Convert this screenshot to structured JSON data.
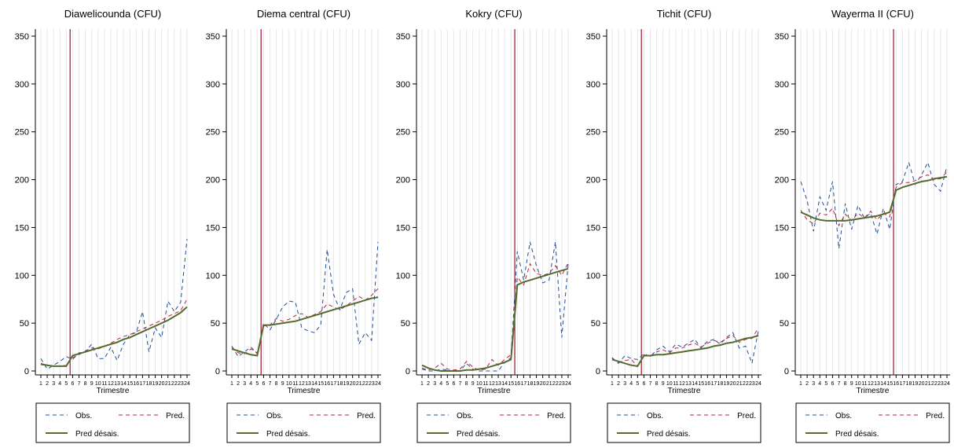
{
  "colors": {
    "obs": "#1f4e9c",
    "pred": "#b5243c",
    "pred_desais": "#556b2f",
    "intervention": "#a0102a",
    "grid": "#e6e6e6"
  },
  "legend": {
    "obs": "Obs.",
    "pred": "Pred.",
    "pred_desais": "Pred désais."
  },
  "chart_data": [
    {
      "type": "line",
      "title": "Diawelicounda (CFU)",
      "xlabel": "Trimestre",
      "ylabel": "",
      "ylim": [
        0,
        350
      ],
      "yticks": [
        0,
        50,
        100,
        150,
        200,
        250,
        300,
        350
      ],
      "x": [
        1,
        2,
        3,
        4,
        5,
        6,
        7,
        8,
        9,
        10,
        11,
        12,
        13,
        14,
        15,
        16,
        17,
        18,
        19,
        20,
        21,
        22,
        23,
        24
      ],
      "intervention_x": 5.6,
      "grid": true,
      "legend_position": "bottom",
      "series": [
        {
          "name": "Obs.",
          "values": [
            13,
            2,
            6,
            10,
            15,
            12,
            19,
            20,
            28,
            13,
            13,
            25,
            11,
            28,
            38,
            40,
            62,
            20,
            45,
            35,
            73,
            62,
            72,
            138
          ]
        },
        {
          "name": "Pred.",
          "values": [
            8,
            6,
            5,
            5,
            6,
            14,
            17,
            21,
            24,
            23,
            26,
            29,
            33,
            36,
            38,
            41,
            44,
            47,
            50,
            53,
            57,
            60,
            63,
            75
          ]
        },
        {
          "name": "Pred désais.",
          "values": [
            7,
            6,
            5,
            5,
            5,
            16,
            18,
            20,
            22,
            24,
            26,
            28,
            30,
            33,
            35,
            38,
            41,
            44,
            47,
            50,
            53,
            57,
            61,
            67
          ]
        }
      ]
    },
    {
      "type": "line",
      "title": "Diema central (CFU)",
      "xlabel": "Trimestre",
      "ylabel": "",
      "ylim": [
        0,
        350
      ],
      "yticks": [
        0,
        50,
        100,
        150,
        200,
        250,
        300,
        350
      ],
      "x": [
        1,
        2,
        3,
        4,
        5,
        6,
        7,
        8,
        9,
        10,
        11,
        12,
        13,
        14,
        15,
        16,
        17,
        18,
        19,
        20,
        21,
        22,
        23,
        24
      ],
      "intervention_x": 5.6,
      "grid": true,
      "legend_position": "bottom",
      "series": [
        {
          "name": "Obs.",
          "values": [
            26,
            15,
            20,
            25,
            18,
            50,
            43,
            54,
            67,
            73,
            72,
            45,
            42,
            40,
            48,
            127,
            80,
            64,
            82,
            86,
            28,
            40,
            32,
            135
          ]
        },
        {
          "name": "Pred.",
          "values": [
            25,
            19,
            18,
            23,
            19,
            47,
            48,
            55,
            52,
            54,
            58,
            60,
            56,
            59,
            62,
            70,
            67,
            64,
            68,
            73,
            78,
            74,
            79,
            86
          ]
        },
        {
          "name": "Pred désais.",
          "values": [
            23,
            21,
            19,
            17,
            16,
            48,
            48,
            49,
            50,
            51,
            52,
            54,
            56,
            58,
            60,
            62,
            64,
            66,
            68,
            70,
            72,
            74,
            76,
            77
          ]
        }
      ]
    },
    {
      "type": "line",
      "title": "Kokry (CFU)",
      "xlabel": "Trimestre",
      "ylabel": "",
      "ylim": [
        0,
        350
      ],
      "yticks": [
        0,
        50,
        100,
        150,
        200,
        250,
        300,
        350
      ],
      "x": [
        1,
        2,
        3,
        4,
        5,
        6,
        7,
        8,
        9,
        10,
        11,
        12,
        13,
        14,
        15,
        16,
        17,
        18,
        19,
        20,
        21,
        22,
        23,
        24
      ],
      "intervention_x": 15.6,
      "grid": true,
      "legend_position": "bottom",
      "series": [
        {
          "name": "Obs.",
          "values": [
            2,
            0,
            0,
            2,
            1,
            0,
            0,
            8,
            2,
            0,
            0,
            0,
            0,
            9,
            14,
            125,
            95,
            135,
            110,
            92,
            95,
            135,
            35,
            112
          ]
        },
        {
          "name": "Pred.",
          "values": [
            3,
            1,
            3,
            8,
            2,
            1,
            2,
            10,
            4,
            1,
            2,
            12,
            6,
            12,
            17,
            98,
            90,
            112,
            102,
            100,
            102,
            110,
            100,
            113
          ]
        },
        {
          "name": "Pred désais.",
          "values": [
            6,
            3,
            1,
            0,
            0,
            0,
            0,
            1,
            1,
            2,
            3,
            5,
            7,
            9,
            12,
            90,
            93,
            95,
            97,
            99,
            101,
            103,
            105,
            107
          ]
        }
      ]
    },
    {
      "type": "line",
      "title": "Tichit (CFU)",
      "xlabel": "Trimestre",
      "ylabel": "",
      "ylim": [
        0,
        350
      ],
      "yticks": [
        0,
        50,
        100,
        150,
        200,
        250,
        300,
        350
      ],
      "x": [
        1,
        2,
        3,
        4,
        5,
        6,
        7,
        8,
        9,
        10,
        11,
        12,
        13,
        14,
        15,
        16,
        17,
        18,
        19,
        20,
        21,
        22,
        23,
        24
      ],
      "intervention_x": 5.6,
      "grid": true,
      "legend_position": "bottom",
      "series": [
        {
          "name": "Obs.",
          "values": [
            14,
            8,
            16,
            13,
            12,
            18,
            15,
            22,
            26,
            20,
            28,
            25,
            29,
            33,
            24,
            31,
            33,
            28,
            35,
            40,
            24,
            26,
            8,
            42
          ]
        },
        {
          "name": "Pred.",
          "values": [
            13,
            9,
            11,
            12,
            5,
            17,
            15,
            20,
            22,
            19,
            24,
            24,
            27,
            29,
            25,
            29,
            32,
            30,
            34,
            37,
            30,
            33,
            34,
            45
          ]
        },
        {
          "name": "Pred désais.",
          "values": [
            12,
            10,
            8,
            6,
            5,
            16,
            16,
            17,
            17,
            18,
            19,
            20,
            21,
            22,
            23,
            24,
            26,
            27,
            29,
            30,
            32,
            34,
            35,
            37
          ]
        }
      ]
    },
    {
      "type": "line",
      "title": "Wayerma II (CFU)",
      "xlabel": "Trimestre",
      "ylabel": "",
      "ylim": [
        0,
        350
      ],
      "yticks": [
        0,
        50,
        100,
        150,
        200,
        250,
        300,
        350
      ],
      "x": [
        1,
        2,
        3,
        4,
        5,
        6,
        7,
        8,
        9,
        10,
        11,
        12,
        13,
        14,
        15,
        16,
        17,
        18,
        19,
        20,
        21,
        22,
        23,
        24
      ],
      "intervention_x": 15.6,
      "grid": true,
      "legend_position": "bottom",
      "series": [
        {
          "name": "Obs.",
          "values": [
            198,
            178,
            146,
            182,
            168,
            198,
            128,
            175,
            148,
            173,
            160,
            165,
            143,
            170,
            148,
            195,
            198,
            218,
            195,
            205,
            218,
            195,
            188,
            214
          ]
        },
        {
          "name": "Pred.",
          "values": [
            168,
            158,
            154,
            165,
            163,
            170,
            152,
            164,
            157,
            165,
            160,
            167,
            158,
            165,
            161,
            192,
            197,
            197,
            199,
            203,
            205,
            200,
            201,
            208
          ]
        },
        {
          "name": "Pred désais.",
          "values": [
            166,
            163,
            160,
            158,
            157,
            157,
            157,
            157,
            158,
            159,
            160,
            161,
            162,
            164,
            166,
            189,
            192,
            194,
            196,
            198,
            199,
            201,
            202,
            203
          ]
        }
      ]
    }
  ]
}
